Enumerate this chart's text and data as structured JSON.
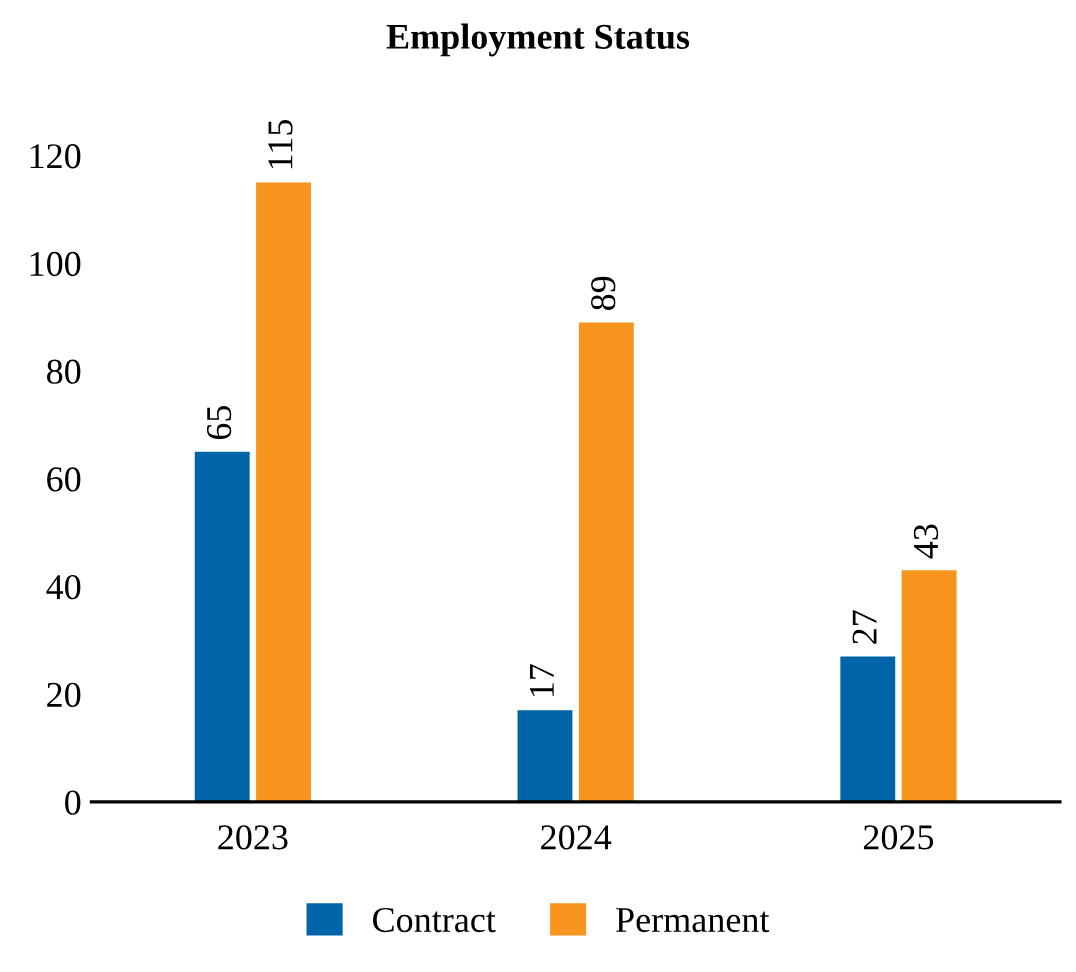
{
  "chart_data": {
    "type": "bar",
    "title": "Employment Status",
    "categories": [
      "2023",
      "2024",
      "2025"
    ],
    "series": [
      {
        "name": "Contract",
        "color": "#0065a8",
        "values": [
          65,
          17,
          27
        ]
      },
      {
        "name": "Permanent",
        "color": "#f7941d",
        "values": [
          115,
          89,
          43
        ]
      }
    ],
    "ylim": [
      0,
      120
    ],
    "yticks": [
      0,
      20,
      40,
      60,
      80,
      100,
      120
    ],
    "grid": false,
    "legend": "bottom",
    "data_labels": true
  }
}
